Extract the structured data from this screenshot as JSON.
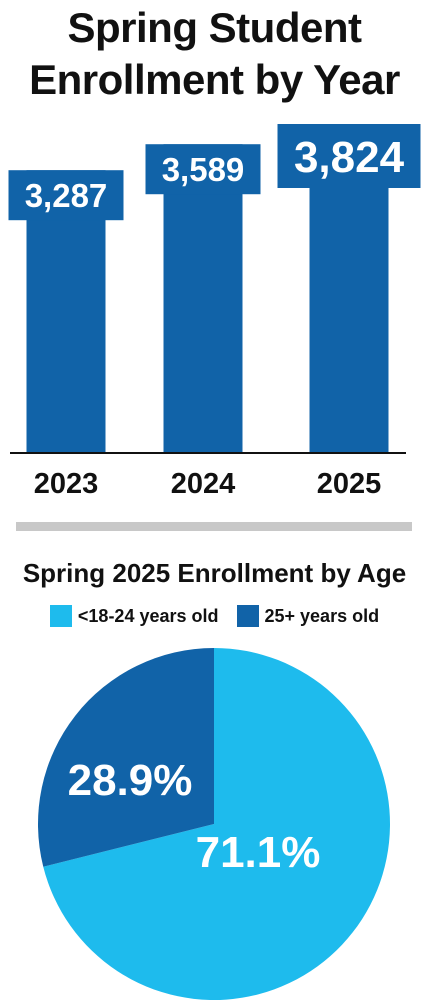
{
  "title": "Spring Student Enrollment by Year",
  "subtitle": "Spring 2025 Enrollment by Age",
  "colors": {
    "bar": "#1163a8",
    "light": "#1ebbed",
    "dark": "#1163a8",
    "axis": "#111111"
  },
  "chart_data": [
    {
      "type": "bar",
      "title": "Spring Student Enrollment by Year",
      "categories": [
        "2023",
        "2024",
        "2025"
      ],
      "values": [
        3287,
        3589,
        3824
      ],
      "value_labels": [
        "3,287",
        "3,589",
        "3,824"
      ],
      "data_labels": true,
      "grid": false
    },
    {
      "type": "pie",
      "title": "Spring 2025 Enrollment by Age",
      "labels": [
        "<18-24 years old",
        "25+ years old"
      ],
      "values": [
        71.1,
        28.9
      ],
      "value_labels": [
        "71.1%",
        "28.9%"
      ],
      "colors": [
        "#1ebbed",
        "#1163a8"
      ],
      "legend": "top"
    }
  ]
}
